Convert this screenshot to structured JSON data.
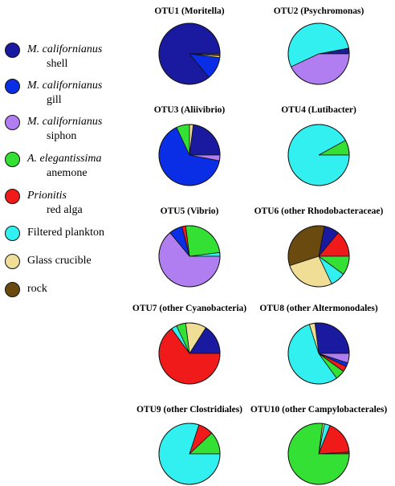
{
  "legend": [
    {
      "line1": "M. californianus",
      "line2": "shell",
      "italic1": true,
      "color": "#1a1aa0"
    },
    {
      "line1": "M. californianus",
      "line2": "gill",
      "italic1": true,
      "color": "#0a2ee6"
    },
    {
      "line1": "M. californianus",
      "line2": "siphon",
      "italic1": true,
      "color": "#b07ef0"
    },
    {
      "line1": "A. elegantissima",
      "line2": "anemone",
      "italic1": true,
      "color": "#33e033"
    },
    {
      "line1": "Prionitis",
      "line2": "red alga",
      "italic1": true,
      "color": "#f01a1a"
    },
    {
      "line1": "Filtered plankton",
      "line2": "",
      "italic1": false,
      "color": "#33f0f0"
    },
    {
      "line1": "Glass crucible",
      "line2": "",
      "italic1": false,
      "color": "#f0dd96"
    },
    {
      "line1": "rock",
      "line2": "",
      "italic1": false,
      "color": "#6b4a10"
    }
  ],
  "chart_data": [
    {
      "type": "pie",
      "title": "OTU1 (Moritella)",
      "slices": [
        {
          "label": "M. californianus shell",
          "value": 86
        },
        {
          "label": "M. californianus gill",
          "value": 12
        },
        {
          "label": "Glass crucible",
          "value": 1
        },
        {
          "label": "rock",
          "value": 1
        }
      ]
    },
    {
      "type": "pie",
      "title": "OTU2 (Psychromonas)",
      "slices": [
        {
          "label": "M. californianus shell",
          "value": 3
        },
        {
          "label": "Filtered plankton",
          "value": 54
        },
        {
          "label": "M. californianus siphon",
          "value": 43
        }
      ]
    },
    {
      "type": "pie",
      "title": "OTU3 (Aliivibrio)",
      "slices": [
        {
          "label": "M. californianus shell",
          "value": 23
        },
        {
          "label": "Glass crucible",
          "value": 2
        },
        {
          "label": "A. elegantissima anemone",
          "value": 7
        },
        {
          "label": "M. californianus gill",
          "value": 65
        },
        {
          "label": "M. californianus siphon",
          "value": 3
        }
      ]
    },
    {
      "type": "pie",
      "title": "OTU4 (Lutibacter)",
      "slices": [
        {
          "label": "A. elegantissima anemone",
          "value": 8
        },
        {
          "label": "Filtered plankton",
          "value": 92
        }
      ]
    },
    {
      "type": "pie",
      "title": "OTU5 (Vibrio)",
      "slices": [
        {
          "label": "Filtered plankton",
          "value": 2
        },
        {
          "label": "A. elegantissima anemone",
          "value": 25
        },
        {
          "label": "Prionitis red alga",
          "value": 2
        },
        {
          "label": "M. californianus gill",
          "value": 7
        },
        {
          "label": "M. californianus siphon",
          "value": 64
        }
      ]
    },
    {
      "type": "pie",
      "title": "OTU6 (other Rhodobacteraceae)",
      "slices": [
        {
          "label": "Prionitis red alga",
          "value": 14
        },
        {
          "label": "M. californianus shell",
          "value": 8
        },
        {
          "label": "rock",
          "value": 33
        },
        {
          "label": "Glass crucible",
          "value": 27
        },
        {
          "label": "Filtered plankton",
          "value": 8
        },
        {
          "label": "A. elegantissima anemone",
          "value": 10
        }
      ]
    },
    {
      "type": "pie",
      "title": "OTU7 (other Cyanobacteria)",
      "slices": [
        {
          "label": "M. californianus shell",
          "value": 16
        },
        {
          "label": "Glass crucible",
          "value": 11
        },
        {
          "label": "A. elegantissima anemone",
          "value": 5
        },
        {
          "label": "Filtered plankton",
          "value": 3
        },
        {
          "label": "Prionitis red alga",
          "value": 65
        }
      ]
    },
    {
      "type": "pie",
      "title": "OTU8 (other Altermonodales)",
      "slices": [
        {
          "label": "M. californianus shell",
          "value": 27
        },
        {
          "label": "Glass crucible",
          "value": 3
        },
        {
          "label": "Filtered plankton",
          "value": 55
        },
        {
          "label": "A. elegantissima anemone",
          "value": 5
        },
        {
          "label": "Prionitis red alga",
          "value": 3
        },
        {
          "label": "M. californianus gill",
          "value": 2
        },
        {
          "label": "M. californianus siphon",
          "value": 5
        }
      ]
    },
    {
      "type": "pie",
      "title": "OTU9 (other Clostridiales)",
      "slices": [
        {
          "label": "A. elegantissima anemone",
          "value": 12
        },
        {
          "label": "Prionitis red alga",
          "value": 8
        },
        {
          "label": "Filtered plankton",
          "value": 80
        }
      ]
    },
    {
      "type": "pie",
      "title": "OTU10 (other Campylobacterales)",
      "slices": [
        {
          "label": "rock",
          "value": 1
        },
        {
          "label": "Prionitis red alga",
          "value": 18
        },
        {
          "label": "Filtered plankton",
          "value": 3
        },
        {
          "label": "Glass crucible",
          "value": 1
        },
        {
          "label": "A. elegantissima anemone",
          "value": 77
        }
      ]
    }
  ]
}
